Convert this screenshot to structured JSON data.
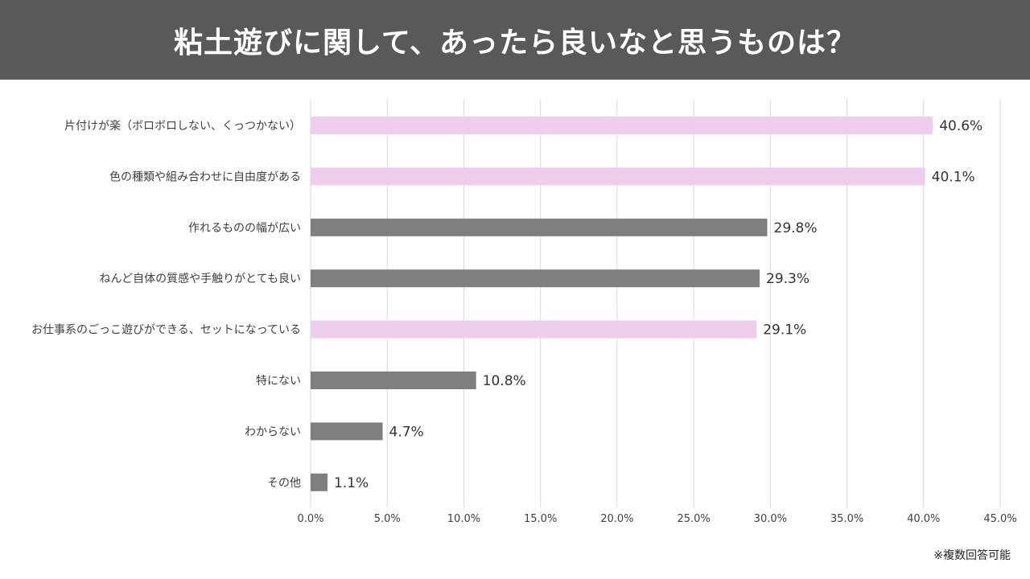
{
  "title": "粘土遊びに関して、あったら良いなと思うものは？",
  "footnote": "※複数回答可能",
  "colors": {
    "title_bg": "#595959",
    "highlight": "#efcdec",
    "normal": "#7f7f7f",
    "grid": "#d9d9d9",
    "text": "#404040"
  },
  "chart_data": {
    "type": "bar",
    "orientation": "horizontal",
    "title": "粘土遊びに関して、あったら良いなと思うものは？",
    "categories": [
      "片付けが楽（ボロボロしない、くっつかない）",
      "色の種類や組み合わせに自由度がある",
      "作れるものの幅が広い",
      "ねんど自体の質感や手触りがとても良い",
      "お仕事系のごっこ遊びができる、セットになっている",
      "特にない",
      "わからない",
      "その他"
    ],
    "values": [
      40.6,
      40.1,
      29.8,
      29.3,
      29.1,
      10.8,
      4.7,
      1.1
    ],
    "data_labels": [
      "40.6%",
      "40.1%",
      "29.8%",
      "29.3%",
      "29.1%",
      "10.8%",
      "4.7%",
      "1.1%"
    ],
    "highlighted": [
      true,
      true,
      false,
      false,
      true,
      false,
      false,
      false
    ],
    "xlim": [
      0,
      45
    ],
    "xticks": [
      0,
      5,
      10,
      15,
      20,
      25,
      30,
      35,
      40,
      45
    ],
    "xtick_labels": [
      "0.0%",
      "5.0%",
      "10.0%",
      "15.0%",
      "20.0%",
      "25.0%",
      "30.0%",
      "35.0%",
      "40.0%",
      "45.0%"
    ],
    "grid": true,
    "xlabel": "",
    "ylabel": ""
  }
}
